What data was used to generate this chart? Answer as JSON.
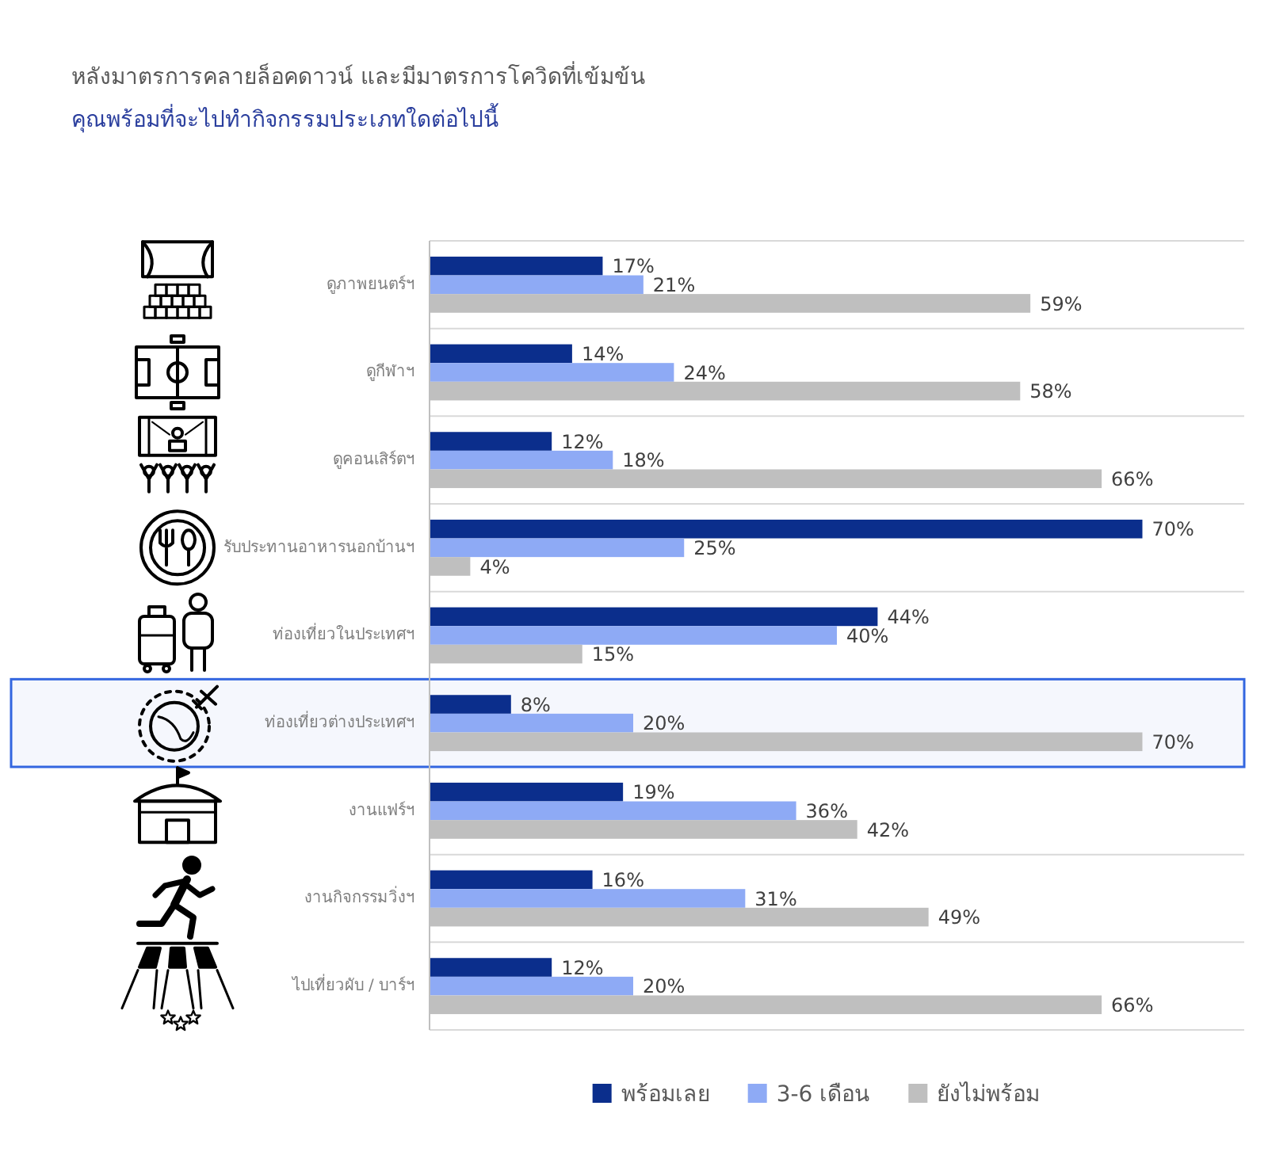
{
  "chart_data": {
    "type": "bar",
    "orientation": "horizontal",
    "title": "หลังมาตรการคลายล็อคดาวน์ และมีมาตรการโควิดที่เข้มข้น",
    "subtitle": "คุณพร้อมที่จะไปทำกิจกรรมประเภทใดต่อไปนี้",
    "categories": [
      "ดูภาพยนตร์ฯ",
      "ดูกีฬาฯ",
      "ดูคอนเสิร์ตฯ",
      "รับประทานอาหารนอกบ้านฯ",
      "ท่องเที่ยวในประเทศฯ",
      "ท่องเที่ยวต่างประเทศฯ",
      "งานแฟร์ฯ",
      "งานกิจกรรมวิ่งฯ",
      "ไปเที่ยวผับ / บาร์ฯ"
    ],
    "series": [
      {
        "name": "พร้อมเลย",
        "color": "#0b2e8c",
        "values": [
          17,
          14,
          12,
          70,
          44,
          8,
          19,
          16,
          12
        ],
        "value_labels": [
          "17%",
          "14%",
          "12%",
          "70%",
          "44%",
          "8%",
          "19%",
          "16%",
          "12%"
        ]
      },
      {
        "name": "3-6 เดือน",
        "color": "#8eaaf5",
        "values": [
          21,
          24,
          18,
          25,
          40,
          20,
          36,
          31,
          20
        ],
        "value_labels": [
          "21%",
          "24%",
          "18%",
          "25%",
          "40%",
          "20%",
          "36%",
          "31%",
          "20%"
        ]
      },
      {
        "name": "ยังไม่พร้อม",
        "color": "#bfbfbf",
        "values": [
          59,
          58,
          66,
          4,
          15,
          70,
          42,
          49,
          66
        ],
        "value_labels": [
          "59%",
          "58%",
          "66%",
          "4%",
          "15%",
          "70%",
          "42%",
          "49%",
          "66%"
        ]
      }
    ],
    "xlim": [
      0,
      80
    ],
    "grid": "y",
    "legend": "bottom",
    "tick_labels": "y",
    "bands": [
      {
        "axis": "y",
        "from": "ท่องเที่ยวต่างประเทศฯ",
        "to": "ท่องเที่ยวต่างประเทศฯ",
        "color": "#3366e0"
      }
    ]
  }
}
